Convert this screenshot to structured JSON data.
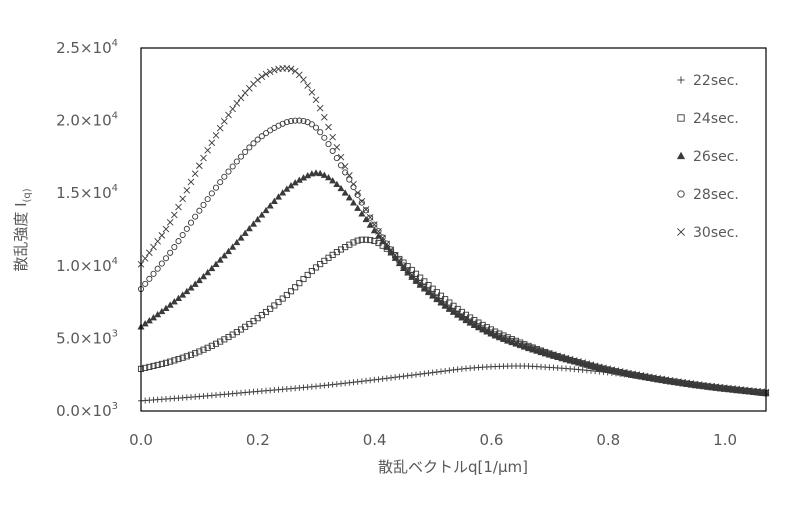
{
  "chart_data": {
    "type": "scatter",
    "xlabel": "散乱ベクトルq[1/μm]",
    "ylabel_main": "散乱強度 I",
    "ylabel_sub": "(q)",
    "xlim": [
      0.0,
      1.07
    ],
    "ylim": [
      0,
      25000
    ],
    "x_ticks": [
      {
        "value": 0.0,
        "label": "0.0"
      },
      {
        "value": 0.2,
        "label": "0.2"
      },
      {
        "value": 0.4,
        "label": "0.4"
      },
      {
        "value": 0.6,
        "label": "0.6"
      },
      {
        "value": 0.8,
        "label": "0.8"
      },
      {
        "value": 1.0,
        "label": "1.0"
      }
    ],
    "y_ticks": [
      {
        "value": 0,
        "mant": "0.0",
        "exp": "3"
      },
      {
        "value": 5000,
        "mant": "5.0",
        "exp": "3"
      },
      {
        "value": 10000,
        "mant": "1.0",
        "exp": "4"
      },
      {
        "value": 15000,
        "mant": "1.5",
        "exp": "4"
      },
      {
        "value": 20000,
        "mant": "2.0",
        "exp": "4"
      },
      {
        "value": 25000,
        "mant": "2.5",
        "exp": "4"
      }
    ],
    "times_symbol": "×10",
    "grid": false,
    "legend_position": "right",
    "series": [
      {
        "name": "22sec.",
        "marker": "plus",
        "x": [
          0.0,
          0.1,
          0.2,
          0.3,
          0.4,
          0.5,
          0.55,
          0.6,
          0.65,
          0.7,
          0.75,
          0.8,
          0.85,
          0.9,
          0.95,
          1.0,
          1.07
        ],
        "y": [
          700,
          1000,
          1350,
          1700,
          2150,
          2650,
          2900,
          3050,
          3100,
          3000,
          2850,
          2650,
          2400,
          2100,
          1800,
          1550,
          1250
        ]
      },
      {
        "name": "24sec.",
        "marker": "square",
        "x": [
          0.0,
          0.05,
          0.1,
          0.15,
          0.2,
          0.25,
          0.3,
          0.35,
          0.38,
          0.4,
          0.42,
          0.45,
          0.5,
          0.55,
          0.6,
          0.65,
          0.7,
          0.75,
          0.8,
          0.85,
          0.9,
          0.95,
          1.0,
          1.07
        ],
        "y": [
          2900,
          3400,
          4100,
          5100,
          6400,
          8000,
          9900,
          11300,
          11800,
          11700,
          11200,
          10200,
          8400,
          6800,
          5600,
          4700,
          3950,
          3350,
          2850,
          2450,
          2100,
          1800,
          1550,
          1250
        ]
      },
      {
        "name": "26sec.",
        "marker": "triangle",
        "x": [
          0.0,
          0.05,
          0.1,
          0.15,
          0.2,
          0.25,
          0.28,
          0.3,
          0.32,
          0.35,
          0.4,
          0.45,
          0.5,
          0.55,
          0.6,
          0.65,
          0.7,
          0.75,
          0.8,
          0.85,
          0.9,
          0.95,
          1.0,
          1.07
        ],
        "y": [
          5800,
          7300,
          9000,
          11000,
          13200,
          15300,
          16100,
          16400,
          16100,
          15000,
          12400,
          9800,
          7900,
          6400,
          5300,
          4500,
          3850,
          3300,
          2800,
          2400,
          2050,
          1750,
          1500,
          1200
        ]
      },
      {
        "name": "28sec.",
        "marker": "circle",
        "x": [
          0.0,
          0.05,
          0.1,
          0.15,
          0.2,
          0.25,
          0.27,
          0.3,
          0.35,
          0.4,
          0.45,
          0.5,
          0.55,
          0.6,
          0.65,
          0.7,
          0.75,
          0.8,
          0.85,
          0.9,
          0.95,
          1.0,
          1.07
        ],
        "y": [
          8400,
          10900,
          13800,
          16500,
          18700,
          19900,
          20000,
          19500,
          16400,
          12800,
          10000,
          8000,
          6500,
          5400,
          4600,
          3900,
          3350,
          2850,
          2450,
          2100,
          1800,
          1550,
          1200
        ]
      },
      {
        "name": "30sec.",
        "marker": "x",
        "x": [
          0.0,
          0.05,
          0.1,
          0.15,
          0.2,
          0.23,
          0.25,
          0.27,
          0.3,
          0.35,
          0.4,
          0.45,
          0.5,
          0.55,
          0.6,
          0.65,
          0.7,
          0.75,
          0.8,
          0.85,
          0.9,
          0.95,
          1.0,
          1.07
        ],
        "y": [
          10100,
          13000,
          16900,
          20400,
          22800,
          23500,
          23600,
          23200,
          21400,
          16800,
          12800,
          10000,
          8000,
          6500,
          5400,
          4600,
          3950,
          3400,
          2900,
          2500,
          2150,
          1850,
          1600,
          1300
        ]
      }
    ]
  }
}
